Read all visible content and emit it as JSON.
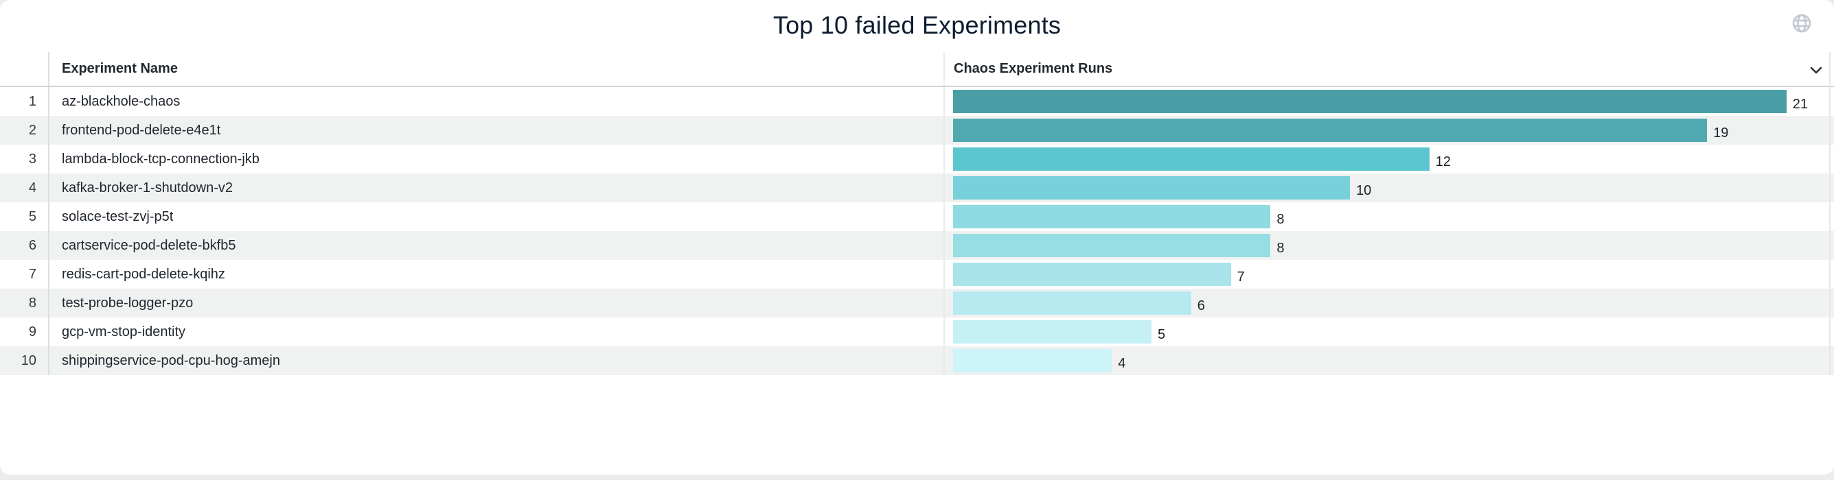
{
  "title": "Top 10 failed Experiments",
  "table": {
    "columns": [
      "Experiment Name",
      "Chaos Experiment Runs"
    ],
    "rows": [
      {
        "rank": 1,
        "name": "az-blackhole-chaos",
        "runs": 21,
        "color": "#4A9FA7"
      },
      {
        "rank": 2,
        "name": "frontend-pod-delete-e4e1t",
        "runs": 19,
        "color": "#50A9B1"
      },
      {
        "rank": 3,
        "name": "lambda-block-tcp-connection-jkb",
        "runs": 12,
        "color": "#5BC5D0"
      },
      {
        "rank": 4,
        "name": "kafka-broker-1-shutdown-v2",
        "runs": 10,
        "color": "#77D0DA"
      },
      {
        "rank": 5,
        "name": "solace-test-zvj-p5t",
        "runs": 8,
        "color": "#8FDBE2"
      },
      {
        "rank": 6,
        "name": "cartservice-pod-delete-bkfb5",
        "runs": 8,
        "color": "#96DDE4"
      },
      {
        "rank": 7,
        "name": "redis-cart-pod-delete-kqihz",
        "runs": 7,
        "color": "#A9E4EA"
      },
      {
        "rank": 8,
        "name": "test-probe-logger-pzo",
        "runs": 6,
        "color": "#B6EAF0"
      },
      {
        "rank": 9,
        "name": "gcp-vm-stop-identity",
        "runs": 5,
        "color": "#C5F0F5"
      },
      {
        "rank": 10,
        "name": "shippingservice-pod-cpu-hog-amejn",
        "runs": 4,
        "color": "#CDF4F9"
      }
    ]
  },
  "icons": {
    "globe": "globe-icon",
    "chevron": "chevron-down-icon"
  },
  "colors": {
    "title_text": "#0e1c30",
    "header_text": "#22282f",
    "row_stripe": "#f0f1f1",
    "globe_icon": "#c3cad4",
    "chevron_icon": "#2b3238"
  },
  "chart_data": {
    "type": "bar",
    "orientation": "horizontal",
    "title": "Top 10 failed Experiments",
    "categories": [
      "az-blackhole-chaos",
      "frontend-pod-delete-e4e1t",
      "lambda-block-tcp-connection-jkb",
      "kafka-broker-1-shutdown-v2",
      "solace-test-zvj-p5t",
      "cartservice-pod-delete-bkfb5",
      "redis-cart-pod-delete-kqihz",
      "test-probe-logger-pzo",
      "gcp-vm-stop-identity",
      "shippingservice-pod-cpu-hog-amejn"
    ],
    "values": [
      21,
      19,
      12,
      10,
      8,
      8,
      7,
      6,
      5,
      4
    ],
    "value_axis_label": "Chaos Experiment Runs",
    "category_axis_label": "Experiment Name",
    "xlim": [
      0,
      22
    ],
    "data_labels": true,
    "grid": false,
    "legend": false,
    "bar_colors": [
      "#4A9FA7",
      "#50A9B1",
      "#5BC5D0",
      "#77D0DA",
      "#8FDBE2",
      "#96DDE4",
      "#A9E4EA",
      "#B6EAF0",
      "#C5F0F5",
      "#CDF4F9"
    ]
  }
}
